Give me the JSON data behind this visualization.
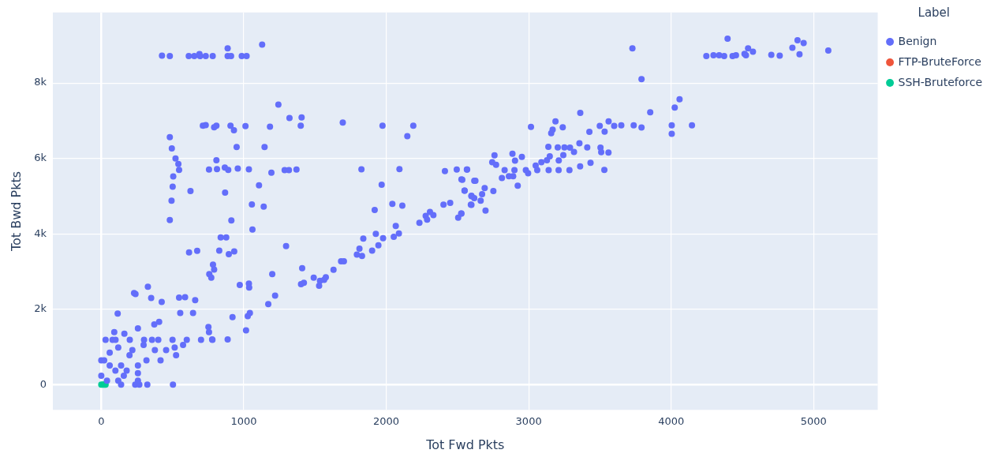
{
  "chart_data": {
    "type": "scatter",
    "xlabel": "Tot Fwd Pkts",
    "ylabel": "Tot Bwd Pkts",
    "legend_title": "Label",
    "legend": "top right",
    "grid": true,
    "marker": "circle",
    "xlim": [
      -340,
      5450
    ],
    "ylim": [
      -670,
      9870
    ],
    "xticks": [
      0,
      1000,
      2000,
      3000,
      4000,
      5000
    ],
    "yticks": [
      0,
      {
        "value": 2000,
        "label": "2k"
      },
      {
        "value": 4000,
        "label": "4k"
      },
      {
        "value": 6000,
        "label": "6k"
      },
      {
        "value": 8000,
        "label": "8k"
      }
    ],
    "series": [
      {
        "name": "Benign",
        "color": "#636efa",
        "x": [
          426,
          481,
          614,
          653,
          693,
          733,
          689,
          782,
          887,
          887,
          911,
          986,
          1020,
          1129,
          1243,
          1321,
          1406,
          1400,
          1695,
          1974,
          2190,
          2148,
          481,
          495,
          521,
          541,
          546,
          505,
          501,
          493,
          481,
          713,
          733,
          792,
          808,
          907,
          931,
          1012,
          1184,
          950,
          1146,
          808,
          756,
          812,
          867,
          891,
          958,
          1036,
          1194,
          1287,
          1317,
          1370,
          1826,
          2093,
          2412,
          2495,
          2566,
          2528,
          2618,
          2550,
          2598,
          2618,
          2594,
          2526,
          2505,
          2402,
          2449,
          1968,
          2043,
          2113,
          1919,
          2233,
          2277,
          2307,
          2331,
          2287,
          2067,
          2089,
          2053,
          1978,
          1927,
          1839,
          1812,
          1794,
          1830,
          1901,
          1945,
          1683,
          1703,
          1630,
          1576,
          1535,
          1529,
          1491,
          1564,
          1410,
          1402,
          1422,
          1297,
          1200,
          1220,
          1172,
          1061,
          1057,
          1140,
          1107,
          913,
          869,
          626,
          838,
          877,
          616,
          673,
          828,
          895,
          933,
          784,
          792,
          758,
          772,
          972,
          1036,
          1038,
          1043,
          1028,
          1016,
          921,
          887,
          752,
          756,
          778,
          327,
          230,
          240,
          350,
          424,
          546,
          588,
          659,
          115,
          554,
          644,
          372,
          406,
          257,
          91,
          162,
          30,
          100,
          200,
          300,
          400,
          500,
          600,
          700,
          780,
          238,
          267,
          323,
          503,
          139,
          20,
          59,
          99,
          158,
          198,
          257,
          317,
          376,
          416,
          455,
          515,
          574,
          525,
          257,
          119,
          79,
          0,
          0,
          40,
          139,
          218,
          297,
          356,
          59,
          119,
          178,
          257,
          3728,
          3792,
          4247,
          4297,
          4337,
          4372,
          4396,
          4431,
          4455,
          4515,
          4540,
          4574,
          4525,
          4703,
          4762,
          4851,
          4887,
          4930,
          4901,
          5103,
          4059,
          4025,
          3853,
          3362,
          3188,
          3016,
          3168,
          3158,
          3239,
          3426,
          3499,
          3561,
          3533,
          3600,
          3650,
          3737,
          3792,
          4004,
          4004,
          4146,
          3138,
          3204,
          3251,
          3290,
          3243,
          3318,
          3356,
          3411,
          3504,
          3509,
          3560,
          2760,
          2886,
          2952,
          2904,
          2744,
          2771,
          3128,
          3148,
          3089,
          3049,
          3211,
          3434,
          3361,
          3531,
          2831,
          2900,
          2980,
          3060,
          3140,
          3210,
          3286,
          2812,
          2861,
          2891,
          2923,
          2996,
          2568,
          2626,
          2534,
          2691,
          2752,
          2550,
          2598,
          2663,
          2673,
          2598,
          2697,
          2528
        ],
        "values": [
          8726,
          8712,
          8712,
          8712,
          8712,
          8712,
          8767,
          8712,
          8916,
          8712,
          8712,
          8712,
          8712,
          9017,
          7424,
          7072,
          7085,
          6868,
          6950,
          6868,
          6868,
          6590,
          6563,
          6265,
          6000,
          5851,
          5695,
          5519,
          5248,
          4875,
          4366,
          6868,
          6882,
          6827,
          6868,
          6868,
          6746,
          6854,
          6841,
          6299,
          6299,
          5953,
          5702,
          5715,
          5756,
          5695,
          5729,
          5709,
          5621,
          5688,
          5688,
          5702,
          5709,
          5715,
          5661,
          5702,
          5702,
          5444,
          5404,
          5146,
          5010,
          4943,
          4773,
          4536,
          4427,
          4773,
          4821,
          5302,
          4793,
          4746,
          4631,
          4292,
          4475,
          4577,
          4495,
          4373,
          4210,
          4007,
          3919,
          3885,
          4000,
          3871,
          3607,
          3451,
          3410,
          3553,
          3695,
          3268,
          3268,
          3044,
          2848,
          2753,
          2624,
          2834,
          2780,
          3085,
          2665,
          2698,
          3675,
          2929,
          2359,
          2136,
          4115,
          4780,
          4719,
          5288,
          4353,
          5092,
          5133,
          3905,
          3905,
          3505,
          3546,
          3553,
          3458,
          3532,
          3180,
          3051,
          2929,
          2834,
          2644,
          2678,
          2576,
          1898,
          1817,
          1437,
          1790,
          1200,
          1526,
          1390,
          1200,
          2597,
          2427,
          2400,
          2298,
          2190,
          2305,
          2319,
          2237,
          1885,
          1898,
          1898,
          1593,
          1661,
          1492,
          1390,
          1349,
          1187,
          1187,
          1187,
          1187,
          1187,
          1187,
          1187,
          1187,
          1187,
          0,
          0,
          0,
          0,
          0,
          644,
          509,
          373,
          237,
          780,
          509,
          644,
          915,
          644,
          915,
          983,
          1051,
          780,
          305,
          983,
          1187,
          237,
          644,
          102,
          509,
          915,
          1051,
          1187,
          848,
          102,
          373,
          102,
          8916,
          8102,
          8712,
          8733,
          8733,
          8712,
          9173,
          8712,
          8733,
          8773,
          8916,
          8828,
          8733,
          8746,
          8726,
          8936,
          9133,
          9058,
          8760,
          8862,
          7566,
          7350,
          7221,
          7207,
          6983,
          6834,
          6760,
          6665,
          6827,
          6705,
          6861,
          6983,
          6712,
          6861,
          6875,
          6875,
          6821,
          6875,
          6651,
          6875,
          6305,
          6292,
          6292,
          6285,
          6088,
          6170,
          6400,
          6292,
          6285,
          6163,
          6156,
          6082,
          6122,
          6041,
          5939,
          5899,
          5831,
          5953,
          6054,
          5899,
          5810,
          5946,
          5885,
          5790,
          5695,
          5688,
          5688,
          5688,
          5688,
          5688,
          5688,
          5688,
          5478,
          5526,
          5526,
          5275,
          5607,
          5702,
          5404,
          5431,
          5214,
          5132,
          5146,
          4997,
          4875,
          5051,
          4766,
          4617,
          4536
        ]
      },
      {
        "name": "FTP-BruteForce",
        "color": "#ef553b"
      },
      {
        "name": "SSH-Bruteforce",
        "color": "#00cc96",
        "x": [
          0,
          10,
          20,
          30
        ],
        "values": [
          0,
          0,
          0,
          0
        ]
      }
    ]
  }
}
